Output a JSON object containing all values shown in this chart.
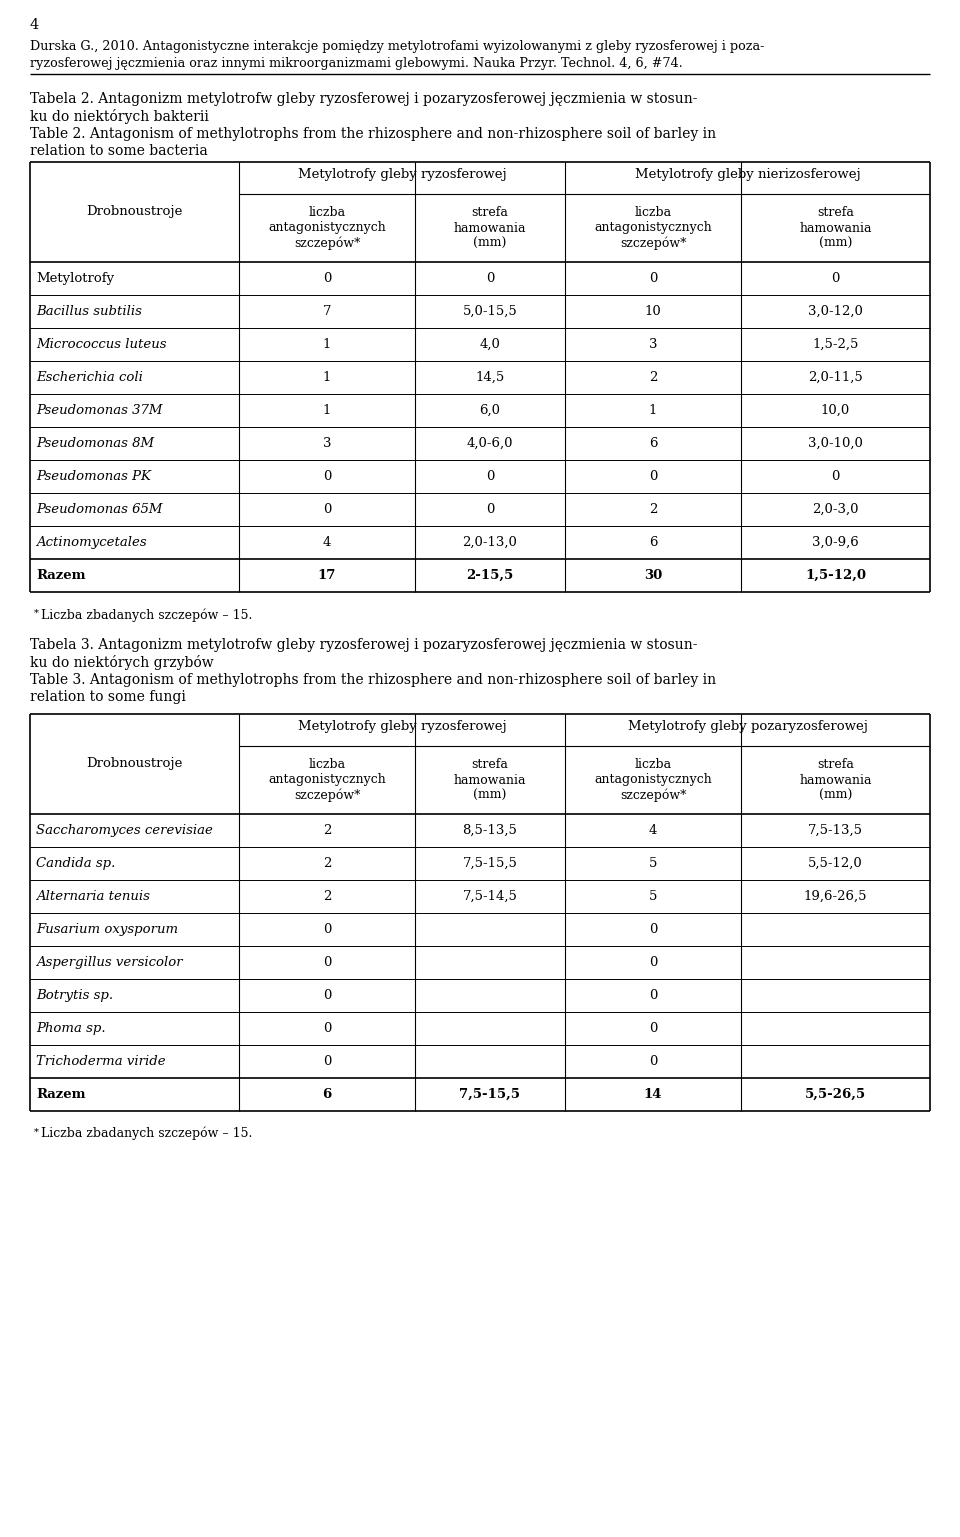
{
  "page_number": "4",
  "header_line1": "Durska G., 2010. Antagonistyczne interakcje pomiędzy metylotrofami wyizolowanymi z gleby ryzosferowej i poza-",
  "header_line2": "ryzosferowej jęczmienia oraz innymi mikroorganizmami glebowymi. Nauka Przyr. Technol. 4, 6, #74.",
  "table2_cap_pl1": "Tabela 2. Antagonizm metylotrofw gleby ryzosferowej i pozaryzosferowej jęczmienia w stosun-",
  "table2_cap_pl2": "ku do niektórych bakterii",
  "table2_cap_en1": "Table 2. Antagonism of methylotrophs from the rhizosphere and non-rhizosphere soil of barley in",
  "table2_cap_en2": "relation to some bacteria",
  "table2_col_group1": "Metylotrofy gleby ryzosferowej",
  "table2_col_group2": "Metylotrofy gleby nierizosferowej",
  "table2_row_header": "Drobnoustroje",
  "table2_subheader1": "liczba\nantagonistycznych\nszczepów*",
  "table2_subheader2": "strefa\nhamowania\n(mm)",
  "table2_subheader3": "liczba\nantagonistycznych\nszczepów*",
  "table2_subheader4": "strefa\nhamowania\n(mm)",
  "table2_rows": [
    [
      "Metylotrofy",
      "0",
      "0",
      "0",
      "0",
      false
    ],
    [
      "Bacillus subtilis",
      "7",
      "5,0-15,5",
      "10",
      "3,0-12,0",
      true
    ],
    [
      "Micrococcus luteus",
      "1",
      "4,0",
      "3",
      "1,5-2,5",
      true
    ],
    [
      "Escherichia coli",
      "1",
      "14,5",
      "2",
      "2,0-11,5",
      true
    ],
    [
      "Pseudomonas 37M",
      "1",
      "6,0",
      "1",
      "10,0",
      true
    ],
    [
      "Pseudomonas 8M",
      "3",
      "4,0-6,0",
      "6",
      "3,0-10,0",
      true
    ],
    [
      "Pseudomonas PK",
      "0",
      "0",
      "0",
      "0",
      true
    ],
    [
      "Pseudomonas 65M",
      "0",
      "0",
      "2",
      "2,0-3,0",
      true
    ],
    [
      "Actinomycetales",
      "4",
      "2,0-13,0",
      "6",
      "3,0-9,6",
      true
    ]
  ],
  "table2_total": [
    "Razem",
    "17",
    "2-15,5",
    "30",
    "1,5-12,0"
  ],
  "table2_footnote": "Liczba zbadanych szczepów – 15.",
  "table3_cap_pl1": "Tabela 3. Antagonizm metylotrofw gleby ryzosferowej i pozaryzosferowej jęczmienia w stosun-",
  "table3_cap_pl2": "ku do niektórych grzybów",
  "table3_cap_en1": "Table 3. Antagonism of methylotrophs from the rhizosphere and non-rhizosphere soil of barley in",
  "table3_cap_en2": "relation to some fungi",
  "table3_col_group1": "Metylotrofy gleby ryzosferowej",
  "table3_col_group2": "Metylotrofy gleby pozaryzosferowej",
  "table3_row_header": "Drobnoustroje",
  "table3_subheader1": "liczba\nantagonistycznych\nszczepów*",
  "table3_subheader2": "strefa\nhamowania\n(mm)",
  "table3_subheader3": "liczba\nantagonistycznych\nszczepów*",
  "table3_subheader4": "strefa\nhamowania\n(mm)",
  "table3_rows": [
    [
      "Saccharomyces cerevisiae",
      "2",
      "8,5-13,5",
      "4",
      "7,5-13,5",
      true
    ],
    [
      "Candida sp.",
      "2",
      "7,5-15,5",
      "5",
      "5,5-12,0",
      true
    ],
    [
      "Alternaria tenuis",
      "2",
      "7,5-14,5",
      "5",
      "19,6-26,5",
      true
    ],
    [
      "Fusarium oxysporum",
      "0",
      "",
      "0",
      "",
      true
    ],
    [
      "Aspergillus versicolor",
      "0",
      "",
      "0",
      "",
      true
    ],
    [
      "Botrytis sp.",
      "0",
      "",
      "0",
      "",
      true
    ],
    [
      "Phoma sp.",
      "0",
      "",
      "0",
      "",
      true
    ],
    [
      "Trichoderma viride",
      "0",
      "",
      "0",
      "",
      true
    ]
  ],
  "table3_total": [
    "Razem",
    "6",
    "7,5-15,5",
    "14",
    "5,5-26,5"
  ],
  "table3_footnote": "Liczba zbadanych szczepów – 15."
}
